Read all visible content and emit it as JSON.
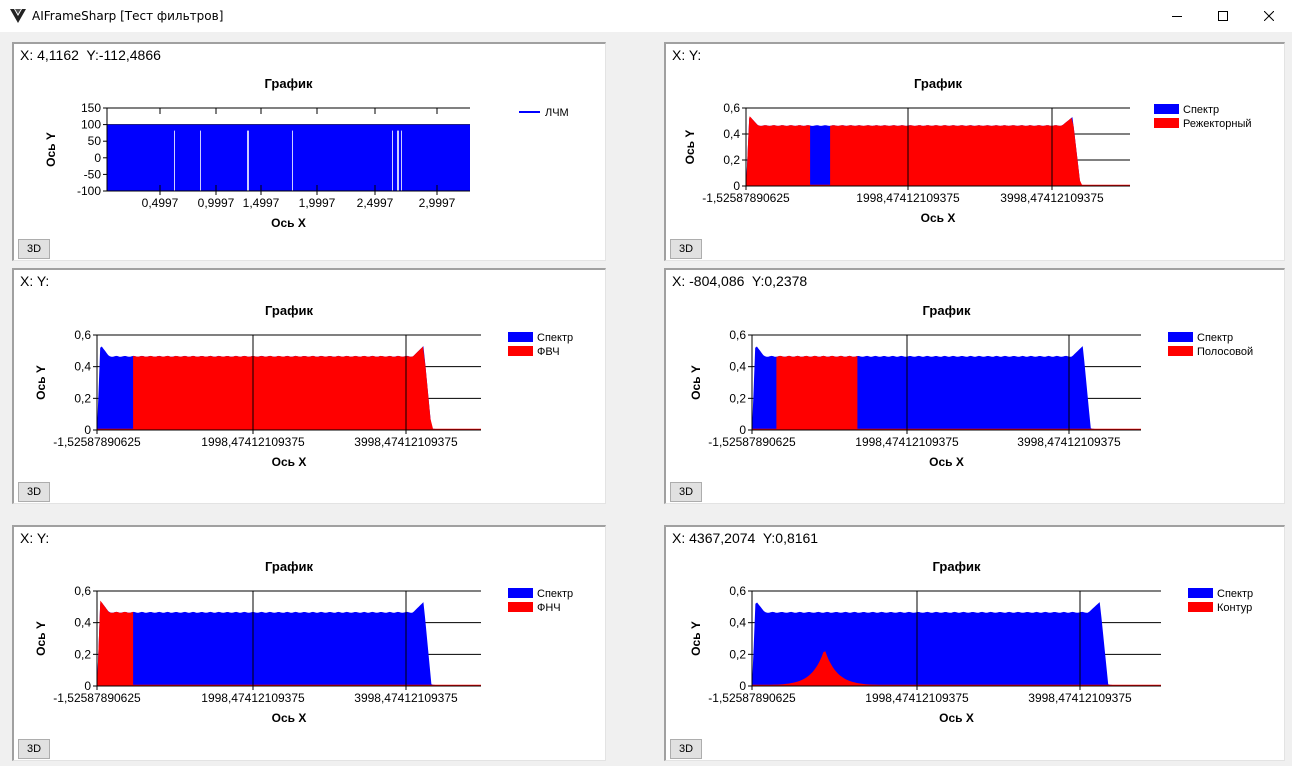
{
  "window": {
    "title": "AIFrameSharp [Тест фильтров]",
    "icon": "app-logo-icon",
    "controls": [
      "minimize-icon",
      "maximize-icon",
      "close-icon"
    ]
  },
  "colors": {
    "spectrum": "#0000ff",
    "filter": "#ff0000",
    "gridline": "#000000"
  },
  "button_3d_label": "3D",
  "panels": [
    {
      "coord_text": "X: 4,1162  Y:-112,4866",
      "button_label": "3D",
      "chart_data": {
        "type": "line",
        "title": "График",
        "xlabel": "Ось X",
        "ylabel": "Ось Y",
        "ylim": [
          -100,
          150
        ],
        "yticks": [
          "150",
          "100",
          "50",
          "0",
          "-50",
          "-100"
        ],
        "xticks": [
          "0,4997",
          "0,9997",
          "1,4997",
          "1,9997",
          "2,4997",
          "2,9997"
        ],
        "xlim": [
          0,
          3
        ],
        "series": [
          {
            "name": "ЛЧМ",
            "color": "#0000ff",
            "band": [
              -100,
              100
            ]
          }
        ],
        "legend": "top-right"
      }
    },
    {
      "coord_text": "X: Y:",
      "button_label": "3D",
      "chart_data": {
        "type": "area",
        "title": "График",
        "xlabel": "Ось X",
        "ylabel": "Ось Y",
        "ylim": [
          0,
          0.6
        ],
        "yticks": [
          "0,6",
          "0,4",
          "0,2",
          "0"
        ],
        "xticks": [
          "-1,52587890625",
          "1998,47412109375",
          "3998,47412109375"
        ],
        "xlim": [
          -1.52587890625,
          4800
        ],
        "series": [
          {
            "name": "Спектр",
            "color": "#0000ff"
          },
          {
            "name": "Режекторный",
            "color": "#ff0000",
            "ranges": [
              [
                -1.5,
                800
              ],
              [
                1050,
                4200
              ]
            ]
          }
        ],
        "legend": "top-right"
      }
    },
    {
      "coord_text": "X: Y:",
      "button_label": "3D",
      "chart_data": {
        "type": "area",
        "title": "График",
        "xlabel": "Ось X",
        "ylabel": "Ось Y",
        "ylim": [
          0,
          0.6
        ],
        "yticks": [
          "0,6",
          "0,4",
          "0,2",
          "0"
        ],
        "xticks": [
          "-1,52587890625",
          "1998,47412109375",
          "3998,47412109375"
        ],
        "xlim": [
          -1.52587890625,
          4800
        ],
        "series": [
          {
            "name": "Спектр",
            "color": "#0000ff"
          },
          {
            "name": "ФВЧ",
            "color": "#ff0000",
            "ranges": [
              [
                450,
                4200
              ]
            ]
          }
        ],
        "legend": "top-right"
      }
    },
    {
      "coord_text": "X: -804,086  Y:0,2378",
      "button_label": "3D",
      "chart_data": {
        "type": "area",
        "title": "График",
        "xlabel": "Ось X",
        "ylabel": "Ось Y",
        "ylim": [
          0,
          0.6
        ],
        "yticks": [
          "0,6",
          "0,4",
          "0,2",
          "0"
        ],
        "xticks": [
          "-1,52587890625",
          "1998,47412109375",
          "3998,47412109375"
        ],
        "xlim": [
          -1.52587890625,
          4800
        ],
        "series": [
          {
            "name": "Спектр",
            "color": "#0000ff"
          },
          {
            "name": "Полосовой",
            "color": "#ff0000",
            "ranges": [
              [
                300,
                1300
              ]
            ]
          }
        ],
        "legend": "top-right"
      }
    },
    {
      "coord_text": "X: Y:",
      "button_label": "3D",
      "chart_data": {
        "type": "area",
        "title": "График",
        "xlabel": "Ось X",
        "ylabel": "Ось Y",
        "ylim": [
          0,
          0.6
        ],
        "yticks": [
          "0,6",
          "0,4",
          "0,2",
          "0"
        ],
        "xticks": [
          "-1,52587890625",
          "1998,47412109375",
          "3998,47412109375"
        ],
        "xlim": [
          -1.52587890625,
          4800
        ],
        "series": [
          {
            "name": "Спектр",
            "color": "#0000ff"
          },
          {
            "name": "ФНЧ",
            "color": "#ff0000",
            "ranges": [
              [
                -1.5,
                450
              ]
            ]
          }
        ],
        "legend": "top-right"
      }
    },
    {
      "coord_text": "X: 4367,2074  Y:0,8161",
      "button_label": "3D",
      "chart_data": {
        "type": "area",
        "title": "График",
        "xlabel": "Ось X",
        "ylabel": "Ось Y",
        "ylim": [
          0,
          0.6
        ],
        "yticks": [
          "0,6",
          "0,4",
          "0,2",
          "0"
        ],
        "xticks": [
          "-1,52587890625",
          "1998,47412109375",
          "3998,47412109375"
        ],
        "xlim": [
          -1.52587890625,
          4800
        ],
        "series": [
          {
            "name": "Спектр",
            "color": "#0000ff"
          },
          {
            "name": "Контур",
            "color": "#ff0000",
            "peak": {
              "x": 850,
              "y": 0.23
            }
          }
        ],
        "legend": "top-right"
      }
    }
  ]
}
